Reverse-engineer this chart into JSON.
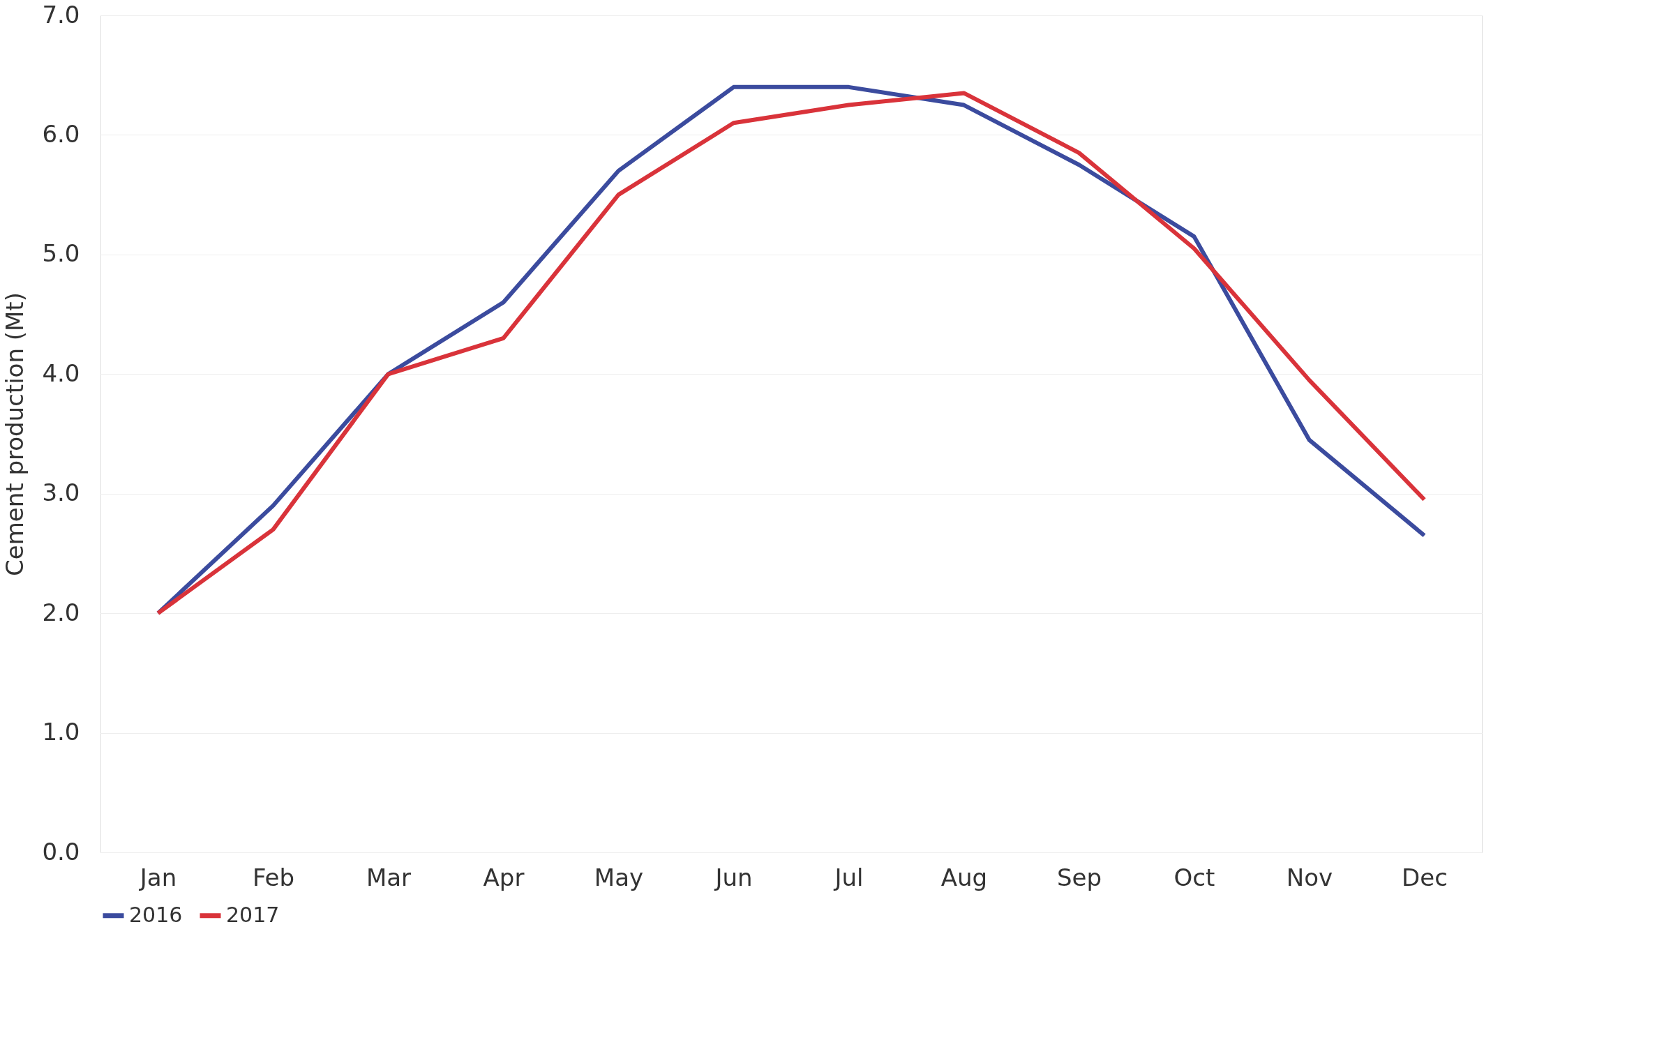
{
  "chart_data": {
    "type": "line",
    "ylabel": "Cement production (Mt)",
    "categories": [
      "Jan",
      "Feb",
      "Mar",
      "Apr",
      "May",
      "Jun",
      "Jul",
      "Aug",
      "Sep",
      "Oct",
      "Nov",
      "Dec"
    ],
    "series": [
      {
        "name": "2016",
        "color": "#3b4b9e",
        "values": [
          2.0,
          2.9,
          4.0,
          4.6,
          5.7,
          6.4,
          6.4,
          6.25,
          5.75,
          5.15,
          3.45,
          2.65
        ]
      },
      {
        "name": "2017",
        "color": "#d9333a",
        "values": [
          2.0,
          2.7,
          4.0,
          4.3,
          5.5,
          6.1,
          6.25,
          6.35,
          5.85,
          5.05,
          3.95,
          2.95
        ]
      }
    ],
    "ylim": [
      0,
      7
    ],
    "yticks": [
      {
        "value": 0,
        "label": "0.0"
      },
      {
        "value": 1,
        "label": "1.0"
      },
      {
        "value": 2,
        "label": "2.0"
      },
      {
        "value": 3,
        "label": "3.0"
      },
      {
        "value": 4,
        "label": "4.0"
      },
      {
        "value": 5,
        "label": "5.0"
      },
      {
        "value": 6,
        "label": "6.0"
      },
      {
        "value": 7,
        "label": "7.0"
      }
    ],
    "grid": "y",
    "legend": "bottom",
    "marker": "none",
    "line_style": "solid"
  }
}
